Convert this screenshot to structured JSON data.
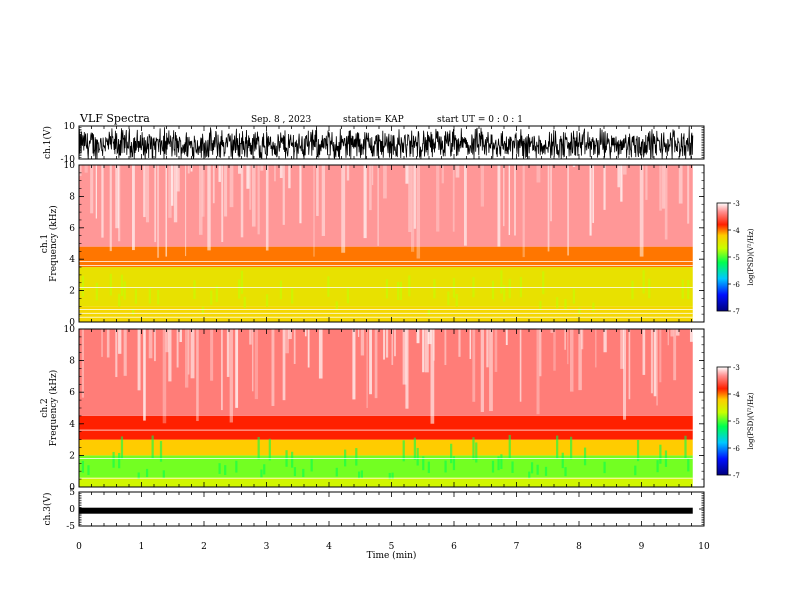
{
  "header": {
    "title": "VLF Spectra",
    "date": "Sep. 8  , 2023",
    "station": "station= KAP",
    "start": "start  UT =   0 : 0  : 1"
  },
  "chart_data": [
    {
      "type": "line",
      "name": "ch1-waveform",
      "ylabel": "ch.1(V)",
      "ylim": [
        -10,
        10
      ],
      "yticks": [
        "10",
        "-10"
      ],
      "xlim": [
        0,
        10
      ],
      "x_data_end": 9.82,
      "description_values": {
        "typical_amplitude_range": [
          -10,
          10
        ]
      }
    },
    {
      "type": "heatmap",
      "name": "ch1-spectrogram",
      "ylabel": "ch.1\nFrequency  (kHz)",
      "ylim": [
        0,
        10
      ],
      "yticks": [
        "0",
        "2",
        "4",
        "6",
        "8",
        "10"
      ],
      "xlim": [
        0,
        10
      ],
      "x_data_end": 9.82,
      "colorbar": {
        "label": "log(PSD)(V²/Hz)",
        "range": [
          -7,
          -3
        ],
        "ticks": [
          "-3",
          "-4",
          "-5",
          "-6",
          "-7"
        ]
      },
      "bands": [
        {
          "f": [
            0,
            1.0
          ],
          "level": -4.3
        },
        {
          "f": [
            1.0,
            3.5
          ],
          "level": -4.4
        },
        {
          "f": [
            3.5,
            4.8
          ],
          "level": -4.0
        },
        {
          "f": [
            4.8,
            10
          ],
          "level": -3.3
        }
      ],
      "lines_khz": [
        0.3,
        0.55,
        0.8,
        2.2,
        3.6,
        3.85
      ]
    },
    {
      "type": "heatmap",
      "name": "ch2-spectrogram",
      "ylabel": "ch.2\nFrequency  (kHz)",
      "ylim": [
        0,
        10
      ],
      "yticks": [
        "0",
        "2",
        "4",
        "6",
        "8",
        "10"
      ],
      "xlim": [
        0,
        10
      ],
      "x_data_end": 9.82,
      "colorbar": {
        "label": "log(PSD)(V²/Hz)",
        "range": [
          -7,
          -3
        ],
        "ticks": [
          "-3",
          "-4",
          "-5",
          "-6",
          "-7"
        ]
      },
      "bands": [
        {
          "f": [
            0,
            0.6
          ],
          "level": -4.6
        },
        {
          "f": [
            0.6,
            2.0
          ],
          "level": -4.9
        },
        {
          "f": [
            2.0,
            3.0
          ],
          "level": -4.2
        },
        {
          "f": [
            3.0,
            4.5
          ],
          "level": -3.8
        },
        {
          "f": [
            4.5,
            10
          ],
          "level": -3.4
        }
      ],
      "lines_khz": [
        0.55,
        1.8,
        3.6
      ]
    },
    {
      "type": "line",
      "name": "ch3-waveform",
      "ylabel": "ch.3(V)",
      "ylim": [
        -5,
        5
      ],
      "yticks": [
        "5",
        "0",
        "-5"
      ],
      "xlim": [
        0,
        10
      ],
      "x_data_end": 9.82,
      "level_v": -0.5,
      "xticks": [
        "0",
        "1",
        "2",
        "3",
        "4",
        "5",
        "6",
        "7",
        "8",
        "9",
        "10"
      ],
      "xlabel": "Time  (min)"
    }
  ]
}
